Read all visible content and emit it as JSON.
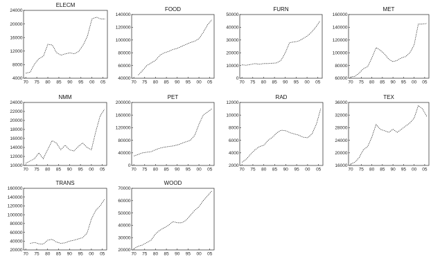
{
  "chart_data": [
    {
      "type": "line",
      "title": "ELECM",
      "x": [
        1970,
        1972,
        1974,
        1976,
        1978,
        1980,
        1982,
        1984,
        1986,
        1988,
        1990,
        1992,
        1994,
        1996,
        1998,
        2000,
        2002,
        2004,
        2006
      ],
      "values": [
        5500,
        5800,
        8200,
        9800,
        10500,
        14000,
        13800,
        11500,
        10800,
        11200,
        11500,
        11200,
        11900,
        13800,
        16500,
        21500,
        22000,
        21500,
        21500
      ],
      "ylim": [
        4000,
        24000
      ],
      "yticks": [
        "4000",
        "8000",
        "12000",
        "16000",
        "20000",
        "24000"
      ],
      "xticks": [
        "70",
        "75",
        "80",
        "85",
        "90",
        "95",
        "00",
        "05"
      ]
    },
    {
      "type": "line",
      "title": "FOOD",
      "x": [
        1972,
        1974,
        1976,
        1978,
        1980,
        1982,
        1984,
        1986,
        1988,
        1990,
        1992,
        1994,
        1996,
        1998,
        2000,
        2002,
        2004,
        2006
      ],
      "values": [
        45000,
        52000,
        60000,
        64000,
        68000,
        76000,
        80000,
        82000,
        85000,
        87000,
        90000,
        93000,
        96000,
        98000,
        102000,
        112000,
        124000,
        132000
      ],
      "ylim": [
        40000,
        140000
      ],
      "yticks": [
        "40000",
        "60000",
        "80000",
        "100000",
        "120000",
        "140000"
      ],
      "xticks": [
        "70",
        "75",
        "80",
        "85",
        "90",
        "95",
        "00",
        "05"
      ]
    },
    {
      "type": "line",
      "title": "FURN",
      "x": [
        1970,
        1972,
        1974,
        1976,
        1978,
        1980,
        1982,
        1984,
        1986,
        1988,
        1990,
        1992,
        1994,
        1996,
        1998,
        2000,
        2002,
        2004,
        2006
      ],
      "values": [
        10500,
        10200,
        10800,
        11500,
        11000,
        11500,
        11500,
        11800,
        12000,
        14000,
        20000,
        28000,
        28500,
        29000,
        31000,
        33000,
        36000,
        40000,
        45000
      ],
      "ylim": [
        0,
        50000
      ],
      "yticks": [
        "0",
        "10000",
        "20000",
        "30000",
        "40000",
        "50000"
      ],
      "xticks": [
        "70",
        "75",
        "80",
        "85",
        "90",
        "95",
        "00",
        "05"
      ]
    },
    {
      "type": "line",
      "title": "MET",
      "x": [
        1970,
        1972,
        1974,
        1976,
        1978,
        1980,
        1982,
        1984,
        1986,
        1988,
        1990,
        1992,
        1994,
        1996,
        1998,
        2000,
        2002,
        2004,
        2006
      ],
      "values": [
        62000,
        63000,
        68000,
        75000,
        78000,
        92000,
        108000,
        104000,
        98000,
        90000,
        86000,
        88000,
        92000,
        94000,
        100000,
        112000,
        145000,
        145000,
        146000
      ],
      "ylim": [
        60000,
        160000
      ],
      "yticks": [
        "60000",
        "80000",
        "100000",
        "120000",
        "140000",
        "160000"
      ],
      "xticks": [
        "70",
        "75",
        "80",
        "85",
        "90",
        "95",
        "00",
        "05"
      ]
    },
    {
      "type": "line",
      "title": "NMM",
      "x": [
        1970,
        1972,
        1974,
        1976,
        1978,
        1980,
        1982,
        1984,
        1986,
        1988,
        1990,
        1992,
        1994,
        1996,
        1998,
        2000,
        2002,
        2004,
        2006
      ],
      "values": [
        10500,
        11000,
        11500,
        12800,
        11500,
        13500,
        15500,
        15000,
        13500,
        14500,
        13500,
        13200,
        14200,
        15000,
        14000,
        13500,
        17500,
        21000,
        22500
      ],
      "ylim": [
        10000,
        24000
      ],
      "yticks": [
        "10000",
        "12000",
        "14000",
        "16000",
        "18000",
        "20000",
        "22000",
        "24000"
      ],
      "xticks": [
        "70",
        "75",
        "80",
        "85",
        "90",
        "95",
        "00",
        "05"
      ]
    },
    {
      "type": "line",
      "title": "PET",
      "x": [
        1970,
        1972,
        1974,
        1976,
        1978,
        1980,
        1982,
        1984,
        1986,
        1988,
        1990,
        1992,
        1994,
        1996,
        1998,
        2000,
        2002,
        2004,
        2006
      ],
      "values": [
        30000,
        35000,
        40000,
        42000,
        44000,
        50000,
        55000,
        58000,
        60000,
        62000,
        65000,
        70000,
        75000,
        80000,
        95000,
        130000,
        160000,
        170000,
        180000
      ],
      "ylim": [
        0,
        200000
      ],
      "yticks": [
        "0",
        "40000",
        "80000",
        "120000",
        "160000",
        "200000"
      ],
      "xticks": [
        "70",
        "75",
        "80",
        "85",
        "90",
        "95",
        "00",
        "05"
      ]
    },
    {
      "type": "line",
      "title": "RAD",
      "x": [
        1970,
        1972,
        1974,
        1976,
        1978,
        1980,
        1982,
        1984,
        1986,
        1988,
        1990,
        1992,
        1994,
        1996,
        1998,
        2000,
        2002,
        2004,
        2006
      ],
      "values": [
        2500,
        3000,
        3800,
        4500,
        5000,
        5200,
        6000,
        6500,
        7200,
        7600,
        7500,
        7200,
        7000,
        6800,
        6500,
        6400,
        7000,
        8500,
        11000
      ],
      "ylim": [
        2000,
        12000
      ],
      "yticks": [
        "2000",
        "4000",
        "6000",
        "8000",
        "10000",
        "12000"
      ],
      "xticks": [
        "70",
        "75",
        "80",
        "85",
        "90",
        "95",
        "00",
        "05"
      ]
    },
    {
      "type": "line",
      "title": "TEX",
      "x": [
        1970,
        1972,
        1974,
        1976,
        1978,
        1980,
        1982,
        1984,
        1986,
        1988,
        1990,
        1992,
        1994,
        1996,
        1998,
        2000,
        2002,
        2004,
        2006
      ],
      "values": [
        16500,
        17000,
        18500,
        21000,
        22000,
        25000,
        29000,
        27500,
        27000,
        26500,
        27500,
        26500,
        27500,
        28500,
        29500,
        31000,
        35000,
        34000,
        31500
      ],
      "ylim": [
        16000,
        36000
      ],
      "yticks": [
        "16000",
        "20000",
        "24000",
        "28000",
        "32000",
        "36000"
      ],
      "xticks": [
        "70",
        "75",
        "80",
        "85",
        "90",
        "95",
        "00",
        "05"
      ]
    },
    {
      "type": "line",
      "title": "TRANS",
      "x": [
        1972,
        1974,
        1976,
        1978,
        1980,
        1982,
        1984,
        1986,
        1988,
        1990,
        1992,
        1994,
        1996,
        1998,
        2000,
        2002,
        2004,
        2006
      ],
      "values": [
        35000,
        37000,
        34000,
        33000,
        42000,
        44000,
        38000,
        35000,
        36000,
        40000,
        42000,
        45000,
        48000,
        58000,
        90000,
        110000,
        120000,
        135000
      ],
      "ylim": [
        20000,
        160000
      ],
      "yticks": [
        "20000",
        "40000",
        "60000",
        "80000",
        "100000",
        "120000",
        "140000",
        "160000"
      ],
      "xticks": [
        "70",
        "75",
        "80",
        "85",
        "90",
        "95",
        "00",
        "05"
      ]
    },
    {
      "type": "line",
      "title": "WOOD",
      "x": [
        1970,
        1972,
        1974,
        1976,
        1978,
        1980,
        1982,
        1984,
        1986,
        1988,
        1990,
        1992,
        1994,
        1996,
        1998,
        2000,
        2002,
        2004,
        2006
      ],
      "values": [
        21000,
        23000,
        24000,
        26000,
        28000,
        33000,
        36000,
        38000,
        40000,
        43000,
        42000,
        42000,
        44000,
        48000,
        52000,
        55000,
        60000,
        64000,
        68000
      ],
      "ylim": [
        20000,
        70000
      ],
      "yticks": [
        "20000",
        "30000",
        "40000",
        "50000",
        "60000",
        "70000"
      ],
      "xticks": [
        "70",
        "75",
        "80",
        "85",
        "90",
        "95",
        "00",
        "05"
      ]
    }
  ]
}
